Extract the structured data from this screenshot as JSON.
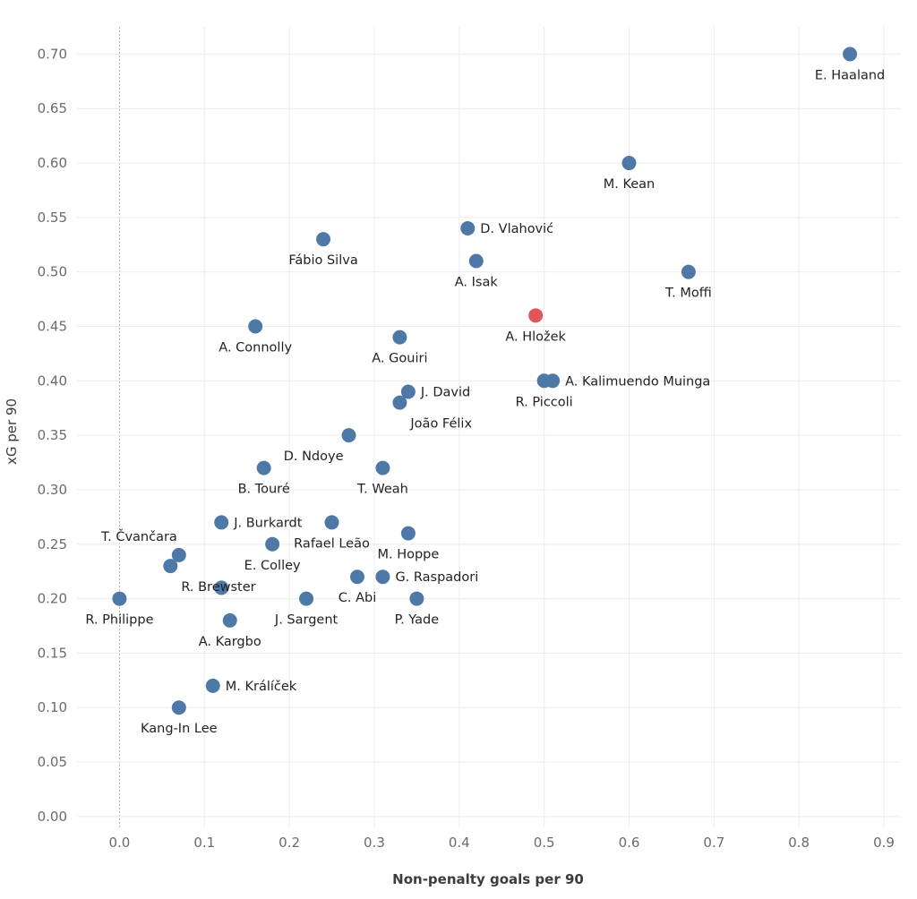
{
  "chart_data": {
    "type": "scatter",
    "title": "",
    "xlabel": "Non-penalty goals per 90",
    "ylabel": "xG per 90",
    "xlim": [
      -0.05,
      0.92
    ],
    "ylim": [
      -0.01,
      0.725
    ],
    "xticks": [
      "0.0",
      "0.1",
      "0.2",
      "0.3",
      "0.4",
      "0.5",
      "0.6",
      "0.7",
      "0.8",
      "0.9"
    ],
    "yticks": [
      "0.00",
      "0.05",
      "0.10",
      "0.15",
      "0.20",
      "0.25",
      "0.30",
      "0.35",
      "0.40",
      "0.45",
      "0.50",
      "0.55",
      "0.60",
      "0.65",
      "0.70"
    ],
    "grid": true,
    "colors": {
      "default": "#4e79a7",
      "highlight": "#e15759"
    },
    "points": [
      {
        "name": "E. Haaland",
        "x": 0.86,
        "y": 0.7,
        "label_pos": "below"
      },
      {
        "name": "M. Kean",
        "x": 0.6,
        "y": 0.6,
        "label_pos": "below"
      },
      {
        "name": "D. Vlahović",
        "x": 0.41,
        "y": 0.54,
        "label_pos": "right"
      },
      {
        "name": "Fábio Silva",
        "x": 0.24,
        "y": 0.53,
        "label_pos": "below"
      },
      {
        "name": "A. Isak",
        "x": 0.42,
        "y": 0.51,
        "label_pos": "below"
      },
      {
        "name": "T. Moffi",
        "x": 0.67,
        "y": 0.5,
        "label_pos": "below"
      },
      {
        "name": "A. Hložek",
        "x": 0.49,
        "y": 0.46,
        "label_pos": "below",
        "highlight": true
      },
      {
        "name": "A. Connolly",
        "x": 0.16,
        "y": 0.45,
        "label_pos": "below"
      },
      {
        "name": "A. Gouiri",
        "x": 0.33,
        "y": 0.44,
        "label_pos": "below"
      },
      {
        "name": "A. Kalimuendo Muinga",
        "x": 0.51,
        "y": 0.4,
        "label_pos": "right"
      },
      {
        "name": "R. Piccoli",
        "x": 0.5,
        "y": 0.4,
        "label_pos": "below"
      },
      {
        "name": "J. David",
        "x": 0.34,
        "y": 0.39,
        "label_pos": "right"
      },
      {
        "name": "João Félix",
        "x": 0.33,
        "y": 0.38,
        "label_pos": "below-right"
      },
      {
        "name": "D. Ndoye",
        "x": 0.27,
        "y": 0.35,
        "label_pos": "below-left"
      },
      {
        "name": "B. Touré",
        "x": 0.17,
        "y": 0.32,
        "label_pos": "below"
      },
      {
        "name": "T. Weah",
        "x": 0.31,
        "y": 0.32,
        "label_pos": "below"
      },
      {
        "name": "J. Burkardt",
        "x": 0.12,
        "y": 0.27,
        "label_pos": "right"
      },
      {
        "name": "Rafael Leão",
        "x": 0.25,
        "y": 0.27,
        "label_pos": "below"
      },
      {
        "name": "M. Hoppe",
        "x": 0.34,
        "y": 0.26,
        "label_pos": "below"
      },
      {
        "name": "E. Colley",
        "x": 0.18,
        "y": 0.25,
        "label_pos": "below"
      },
      {
        "name": "T. Čvančara",
        "x": 0.07,
        "y": 0.24,
        "label_pos": "above-left"
      },
      {
        "name": "R. Brewster",
        "x": 0.06,
        "y": 0.23,
        "label_pos": "below-right"
      },
      {
        "name": "C. Abi",
        "x": 0.28,
        "y": 0.22,
        "label_pos": "below"
      },
      {
        "name": "G. Raspadori",
        "x": 0.31,
        "y": 0.22,
        "label_pos": "right"
      },
      {
        "name": "R. Philippe",
        "x": 0.0,
        "y": 0.2,
        "label_pos": "below"
      },
      {
        "name": "J. Sargent",
        "x": 0.22,
        "y": 0.2,
        "label_pos": "below"
      },
      {
        "name": "P. Yade",
        "x": 0.35,
        "y": 0.2,
        "label_pos": "below"
      },
      {
        "name": "A. Kargbo",
        "x": 0.13,
        "y": 0.18,
        "label_pos": "below"
      },
      {
        "name": "M. Králíček",
        "x": 0.11,
        "y": 0.12,
        "label_pos": "right"
      },
      {
        "name": "Kang-In Lee",
        "x": 0.07,
        "y": 0.1,
        "label_pos": "below"
      },
      {
        "name": "unlabeled-point",
        "x": 0.12,
        "y": 0.21,
        "label_pos": "none"
      }
    ]
  }
}
